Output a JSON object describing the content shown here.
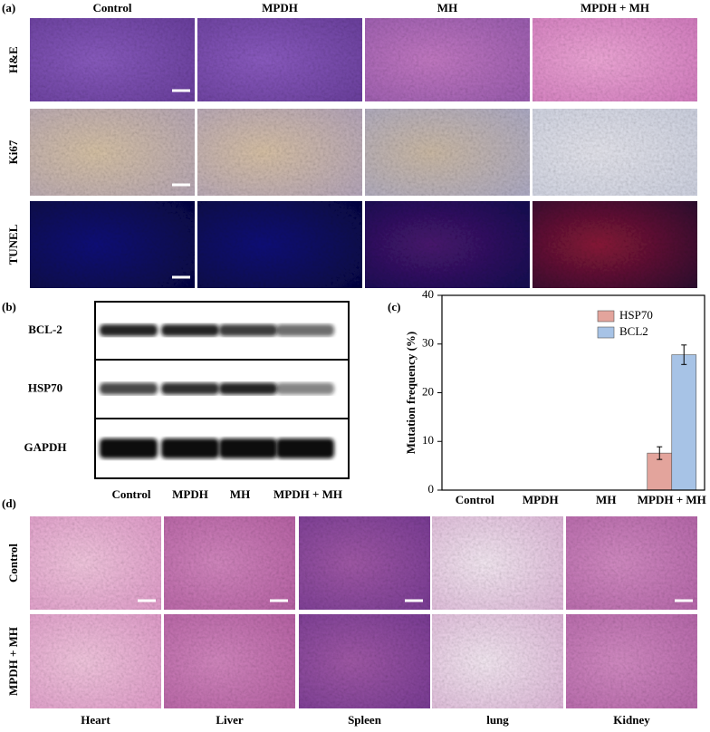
{
  "panel_a": {
    "label": "(a)",
    "columns": [
      "Control",
      "MPDH",
      "MH",
      "MPDH + MH"
    ],
    "rows": [
      "H&E",
      "Ki67",
      "TUNEL"
    ]
  },
  "panel_b": {
    "label": "(b)",
    "proteins": [
      "BCL-2",
      "HSP70",
      "GAPDH"
    ],
    "lanes": [
      "Control",
      "MPDH",
      "MH",
      "MPDH + MH"
    ]
  },
  "chart_data": {
    "type": "bar",
    "panel_label": "(c)",
    "ylabel": "Mutation frequency (%)",
    "categories": [
      "Control",
      "MPDH",
      "MH",
      "MPDH + MH"
    ],
    "series": [
      {
        "name": "HSP70",
        "color": "#e3a49c",
        "values": [
          0,
          0,
          0,
          7.6
        ],
        "errors": [
          null,
          null,
          null,
          1.3
        ]
      },
      {
        "name": "BCL2",
        "color": "#a7c3e6",
        "values": [
          0,
          0,
          0,
          27.8
        ],
        "errors": [
          null,
          null,
          null,
          2.0
        ]
      }
    ],
    "ylim": [
      0,
      40
    ],
    "yticks": [
      0,
      10,
      20,
      30,
      40
    ],
    "legend": "upper right"
  },
  "panel_d": {
    "label": "(d)",
    "rows": [
      "Control",
      "MPDH + MH"
    ],
    "organs": [
      "Heart",
      "Liver",
      "Spleen",
      "lung",
      "Kidney"
    ]
  }
}
